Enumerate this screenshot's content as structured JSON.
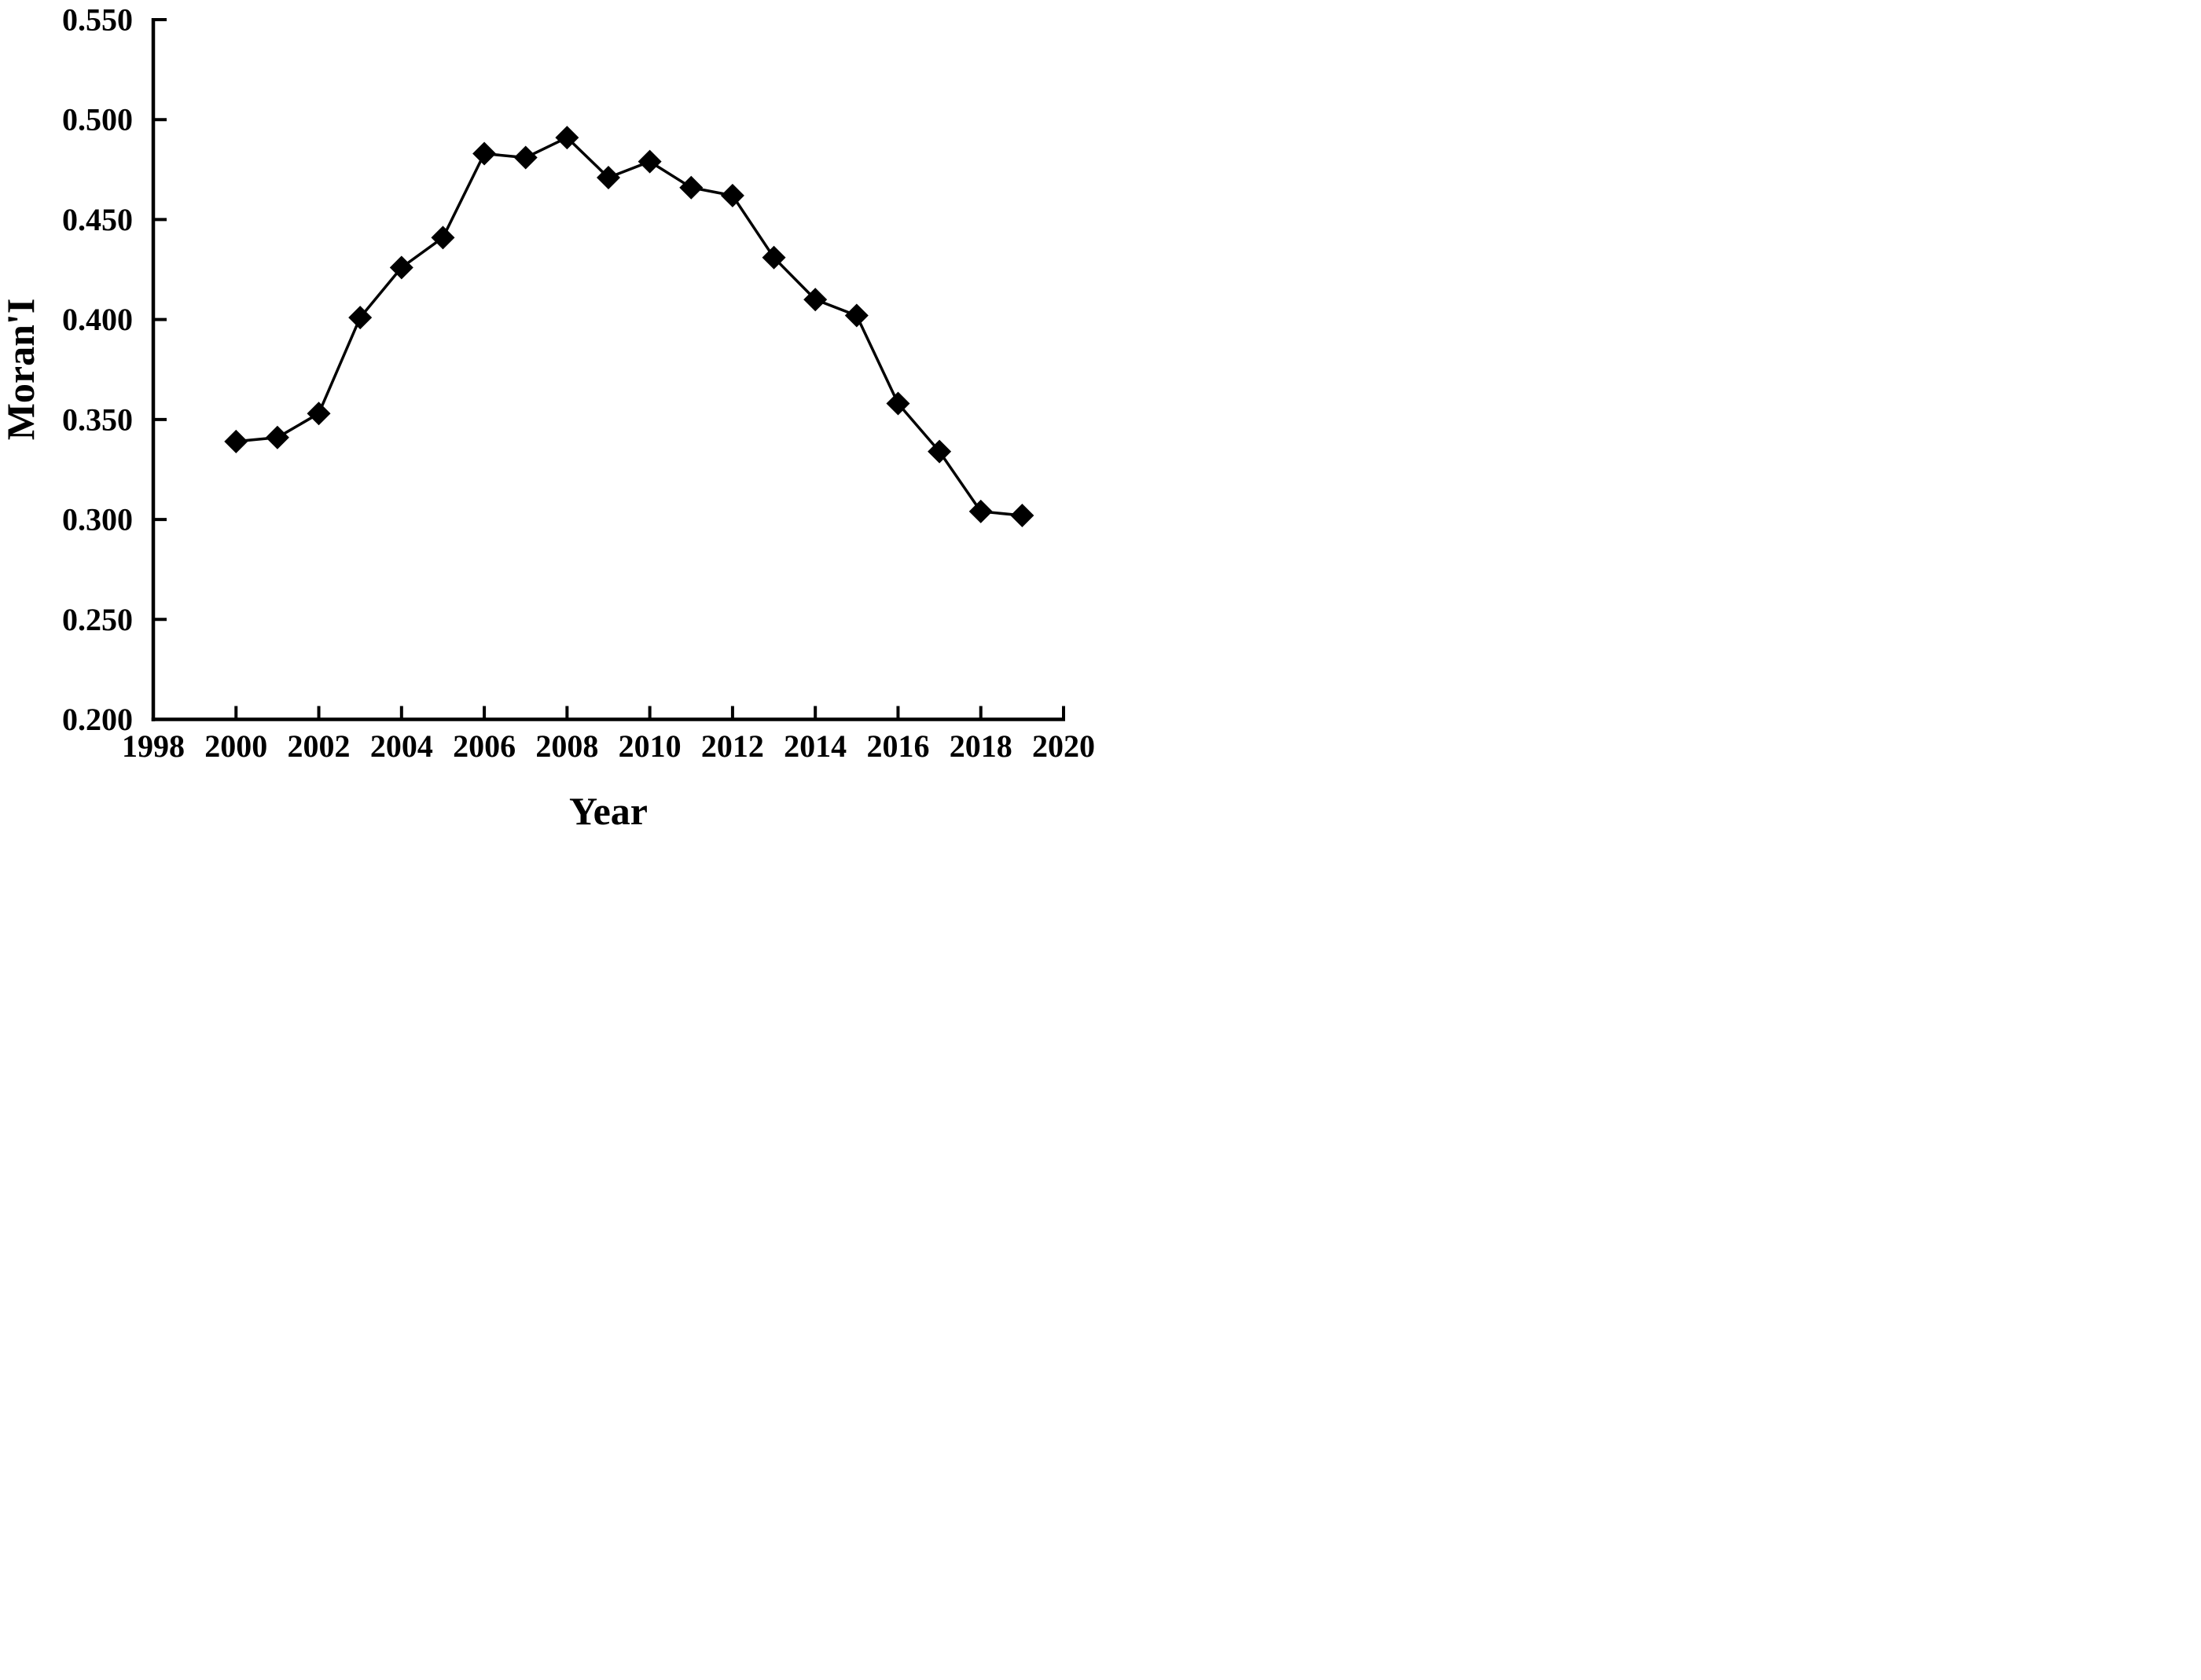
{
  "chart_data": {
    "type": "line",
    "title": "",
    "xlabel": "Year",
    "ylabel": "Moran'I",
    "xlim": [
      1998,
      2020
    ],
    "ylim": [
      0.2,
      0.55
    ],
    "grid": false,
    "legend": false,
    "tick_direction": "in",
    "xticks": {
      "values": [
        1998,
        2000,
        2002,
        2004,
        2006,
        2008,
        2010,
        2012,
        2014,
        2016,
        2018,
        2020
      ],
      "labels": [
        "1998",
        "2000",
        "2002",
        "2004",
        "2006",
        "2008",
        "2010",
        "2012",
        "2014",
        "2016",
        "2018",
        "2020"
      ]
    },
    "yticks": {
      "values": [
        0.2,
        0.25,
        0.3,
        0.35,
        0.4,
        0.45,
        0.5,
        0.55
      ],
      "labels": [
        "0.200",
        "0.250",
        "0.300",
        "0.350",
        "0.400",
        "0.450",
        "0.500",
        "0.550"
      ]
    },
    "series": [
      {
        "x": [
          2000,
          2001,
          2002,
          2003,
          2004,
          2005,
          2006,
          2007,
          2008,
          2009,
          2010,
          2011,
          2012,
          2013,
          2014,
          2015,
          2016,
          2017,
          2018,
          2019
        ],
        "y": [
          0.339,
          0.341,
          0.353,
          0.401,
          0.426,
          0.441,
          0.483,
          0.481,
          0.491,
          0.471,
          0.479,
          0.466,
          0.462,
          0.431,
          0.41,
          0.402,
          0.358,
          0.334,
          0.304,
          0.302
        ]
      }
    ],
    "style": {
      "line_color": "#000000",
      "marker": "diamond",
      "background": "#ffffff"
    }
  }
}
